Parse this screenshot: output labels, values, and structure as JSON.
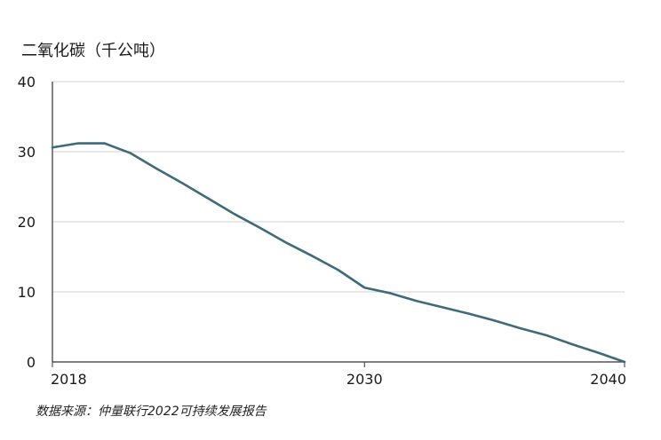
{
  "chart_data": {
    "type": "line",
    "title": "",
    "ylabel": "二氧化碳（千公吨）",
    "xlabel": "",
    "x": [
      2018,
      2019,
      2020,
      2021,
      2022,
      2023,
      2024,
      2025,
      2026,
      2027,
      2028,
      2029,
      2030,
      2031,
      2032,
      2033,
      2034,
      2035,
      2036,
      2037,
      2038,
      2039,
      2040
    ],
    "series": [
      {
        "values": [
          30.6,
          31.2,
          31.2,
          29.8,
          27.6,
          25.5,
          23.3,
          21.1,
          19.1,
          17.0,
          15.1,
          13.1,
          10.6,
          9.8,
          8.7,
          7.8,
          6.9,
          5.9,
          4.8,
          3.8,
          2.5,
          1.3,
          0.0
        ],
        "color": "#3f6a7c"
      }
    ],
    "xticks": [
      "2018",
      "2030",
      "2040"
    ],
    "xtick_values": [
      2018,
      2030,
      2040
    ],
    "yticks": [
      "0",
      "10",
      "20",
      "30",
      "40"
    ],
    "ytick_values": [
      0,
      10,
      20,
      30,
      40
    ],
    "xlim": [
      2018,
      2040
    ],
    "ylim": [
      0,
      40
    ],
    "grid": "horizontal",
    "legend": "none"
  },
  "source": "数据来源：仲量联行2022可持续发展报告",
  "colors": {
    "line": "#3f6a7c",
    "grid": "#d0d0d0",
    "axis": "#333333",
    "text": "#1a1a1a"
  }
}
